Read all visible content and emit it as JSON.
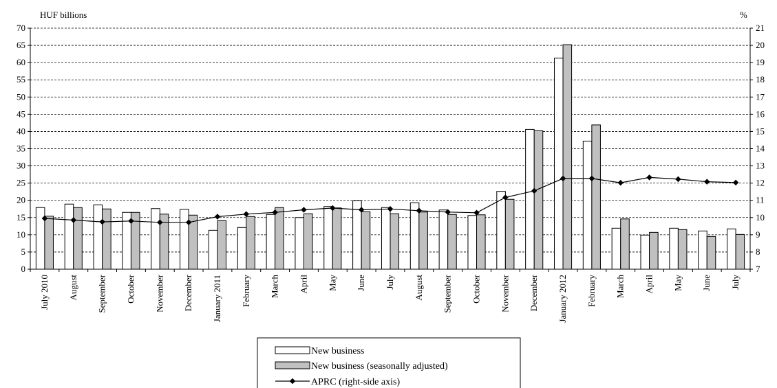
{
  "chart_data": {
    "type": "bar",
    "title": "",
    "left_axis_label": "HUF billions",
    "right_axis_label": "%",
    "left_axis": {
      "ylim": [
        0,
        70
      ],
      "ticks": [
        0,
        5,
        10,
        15,
        20,
        25,
        30,
        35,
        40,
        45,
        50,
        55,
        60,
        65,
        70
      ]
    },
    "right_axis": {
      "ylim": [
        7,
        21
      ],
      "ticks": [
        7,
        8,
        9,
        10,
        11,
        12,
        13,
        14,
        15,
        16,
        17,
        18,
        19,
        20,
        21
      ]
    },
    "grid": "horizontal dashed",
    "legend_position": "bottom",
    "categories": [
      "July 2010",
      "August",
      "September",
      "October",
      "November",
      "December",
      "January 2011",
      "February",
      "March",
      "April",
      "May",
      "June",
      "July",
      "August",
      "September",
      "October",
      "November",
      "December",
      "January 2012",
      "February",
      "March",
      "April",
      "May",
      "June",
      "July"
    ],
    "series": [
      {
        "name": "New business",
        "kind": "bar",
        "color": "#ffffff",
        "axis": "left",
        "values": [
          17.9,
          18.9,
          18.7,
          16.5,
          17.6,
          17.4,
          11.3,
          12.1,
          15.9,
          15.0,
          18.2,
          19.9,
          17.9,
          19.3,
          17.2,
          15.6,
          22.6,
          40.6,
          61.3,
          37.2,
          11.9,
          9.9,
          11.9,
          11.1,
          11.7
        ]
      },
      {
        "name": "New business (seasonally adjusted)",
        "kind": "bar",
        "color": "#c0c0c0",
        "axis": "left",
        "values": [
          15.4,
          17.9,
          17.5,
          16.5,
          16.0,
          15.7,
          14.1,
          15.3,
          17.9,
          16.1,
          17.8,
          16.7,
          16.1,
          16.6,
          15.9,
          15.8,
          20.3,
          40.2,
          65.2,
          41.9,
          14.6,
          10.7,
          11.5,
          9.5,
          10.1
        ]
      },
      {
        "name": "APRC (right-side axis)",
        "kind": "line",
        "color": "#000000",
        "axis": "right",
        "values": [
          9.95,
          9.85,
          9.75,
          9.8,
          9.72,
          9.72,
          10.05,
          10.2,
          10.3,
          10.45,
          10.55,
          10.45,
          10.5,
          10.4,
          10.32,
          10.28,
          11.17,
          11.55,
          12.27,
          12.27,
          12.02,
          12.33,
          12.23,
          12.08,
          12.03
        ]
      }
    ]
  }
}
